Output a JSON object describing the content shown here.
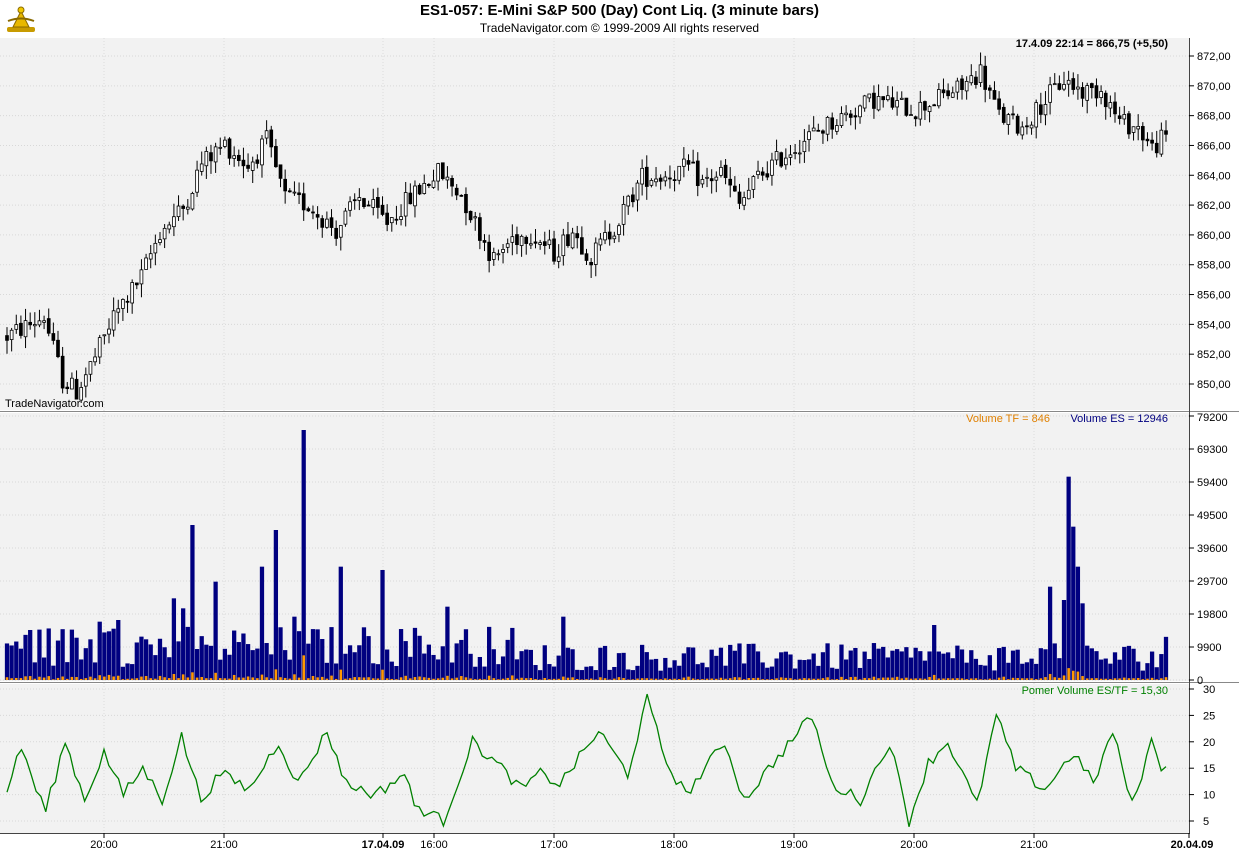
{
  "header": {
    "title": "ES1-057:  E-Mini S&P 500 (Day) Cont Liq.  (3 minute bars)",
    "subtitle": "TradeNavigator.com © 1999-2009 All rights reserved"
  },
  "colors": {
    "panel_bg": "#f2f2f2",
    "volume_es": "#000080",
    "volume_tf": "#ff9900",
    "ratio_line": "#008000",
    "price_line": "#000000"
  },
  "chart_data": [
    {
      "type": "candlestick",
      "name": "price",
      "title": "ES1-057:  E-Mini S&P 500 (Day) Cont Liq.  (3 minute bars)",
      "last_bar_label": "17.4.09 22:14 = 866,75 (+5,50)",
      "watermark": "TradeNavigator.com",
      "ylim": [
        848.5,
        873.2
      ],
      "y_ticks": [
        "850,00",
        "852,00",
        "854,00",
        "856,00",
        "858,00",
        "860,00",
        "862,00",
        "864,00",
        "866,00",
        "868,00",
        "870,00",
        "872,00"
      ],
      "x_labels": [
        "20:00",
        "21:00",
        "17.04.09",
        "16:00",
        "17:00",
        "18:00",
        "19:00",
        "20:00",
        "21:00",
        "20.04.09"
      ],
      "anchors": [
        [
          0,
          853.2
        ],
        [
          8,
          854.5
        ],
        [
          12,
          850.3
        ],
        [
          15,
          849.5
        ],
        [
          19,
          851.8
        ],
        [
          23,
          854.5
        ],
        [
          29,
          857.2
        ],
        [
          33,
          860.2
        ],
        [
          38,
          861.8
        ],
        [
          42,
          864.8
        ],
        [
          47,
          866.1
        ],
        [
          52,
          864.6
        ],
        [
          56,
          866.3
        ],
        [
          60,
          862.5
        ],
        [
          65,
          862.0
        ],
        [
          71,
          860.3
        ],
        [
          76,
          862.5
        ],
        [
          82,
          860.9
        ],
        [
          88,
          862.8
        ],
        [
          93,
          864.2
        ],
        [
          98,
          862.7
        ],
        [
          102,
          860.2
        ],
        [
          105,
          858.3
        ],
        [
          109,
          859.8
        ],
        [
          113,
          860.1
        ],
        [
          118,
          858.8
        ],
        [
          122,
          860.3
        ],
        [
          126,
          858.5
        ],
        [
          132,
          861.0
        ],
        [
          137,
          863.9
        ],
        [
          142,
          864.0
        ],
        [
          147,
          864.5
        ],
        [
          150,
          863.5
        ],
        [
          154,
          864.2
        ],
        [
          158,
          862.0
        ],
        [
          162,
          863.9
        ],
        [
          167,
          865.2
        ],
        [
          172,
          866.4
        ],
        [
          177,
          867.4
        ],
        [
          182,
          868.2
        ],
        [
          187,
          869.1
        ],
        [
          192,
          868.7
        ],
        [
          196,
          868.4
        ],
        [
          201,
          869.2
        ],
        [
          206,
          869.9
        ],
        [
          210,
          871.0
        ],
        [
          214,
          868.0
        ],
        [
          219,
          867.2
        ],
        [
          224,
          869.1
        ],
        [
          228,
          870.4
        ],
        [
          232,
          869.6
        ],
        [
          236,
          869.8
        ],
        [
          240,
          867.6
        ],
        [
          244,
          867.2
        ],
        [
          247,
          865.8
        ],
        [
          250,
          866.7
        ]
      ],
      "close_label_value": 866.75
    },
    {
      "type": "bar",
      "name": "volume",
      "series_names": [
        "Volume TF",
        "Volume ES"
      ],
      "legend_tf": "Volume TF = 846",
      "legend_es": "Volume ES = 12946",
      "ylim": [
        0,
        79200
      ],
      "y_ticks": [
        "79200",
        "69300",
        "59400",
        "49500",
        "39600",
        "29700",
        "19800",
        "9900",
        "0"
      ],
      "es_baseline": 9000,
      "es_spikes": [
        [
          5,
          15000
        ],
        [
          20,
          17500
        ],
        [
          24,
          18000
        ],
        [
          36,
          24500
        ],
        [
          38,
          21500
        ],
        [
          40,
          46500
        ],
        [
          45,
          29500
        ],
        [
          55,
          34000
        ],
        [
          58,
          45000
        ],
        [
          62,
          19000
        ],
        [
          64,
          75000
        ],
        [
          72,
          34000
        ],
        [
          81,
          33000
        ],
        [
          95,
          22000
        ],
        [
          120,
          19000
        ],
        [
          200,
          16500
        ],
        [
          225,
          28000
        ],
        [
          228,
          24000
        ],
        [
          229,
          61000
        ],
        [
          230,
          46000
        ],
        [
          231,
          34000
        ],
        [
          232,
          23000
        ]
      ],
      "tf_ratio_mean": 15.3,
      "last_tf": 846,
      "last_es": 12946
    },
    {
      "type": "line",
      "name": "ratio",
      "legend": "Pomer Volume ES/TF = 15,30",
      "ylim": [
        3,
        30
      ],
      "y_ticks": [
        "30",
        "25",
        "20",
        "15",
        "10",
        "5"
      ],
      "anchors": [
        [
          0,
          11
        ],
        [
          3,
          19
        ],
        [
          6,
          11
        ],
        [
          8,
          7
        ],
        [
          12,
          20
        ],
        [
          16,
          9
        ],
        [
          20,
          18
        ],
        [
          24,
          10
        ],
        [
          28,
          15
        ],
        [
          32,
          9
        ],
        [
          36,
          21
        ],
        [
          40,
          9
        ],
        [
          44,
          14
        ],
        [
          50,
          11
        ],
        [
          56,
          20
        ],
        [
          60,
          12
        ],
        [
          66,
          22
        ],
        [
          70,
          12
        ],
        [
          76,
          10
        ],
        [
          82,
          14
        ],
        [
          84,
          8
        ],
        [
          90,
          5
        ],
        [
          96,
          20
        ],
        [
          102,
          15
        ],
        [
          106,
          11
        ],
        [
          110,
          14
        ],
        [
          114,
          12
        ],
        [
          122,
          22
        ],
        [
          128,
          14
        ],
        [
          132,
          28
        ],
        [
          136,
          16
        ],
        [
          140,
          10
        ],
        [
          148,
          20
        ],
        [
          152,
          9
        ],
        [
          158,
          16
        ],
        [
          166,
          25
        ],
        [
          170,
          12
        ],
        [
          176,
          9
        ],
        [
          182,
          20
        ],
        [
          186,
          5
        ],
        [
          190,
          16
        ],
        [
          194,
          20
        ],
        [
          200,
          8
        ],
        [
          204,
          25
        ],
        [
          208,
          15
        ],
        [
          214,
          11
        ],
        [
          220,
          18
        ],
        [
          224,
          12
        ],
        [
          228,
          22
        ],
        [
          232,
          8
        ],
        [
          236,
          20
        ],
        [
          238,
          15.3
        ]
      ],
      "last_value": 15.3
    }
  ]
}
